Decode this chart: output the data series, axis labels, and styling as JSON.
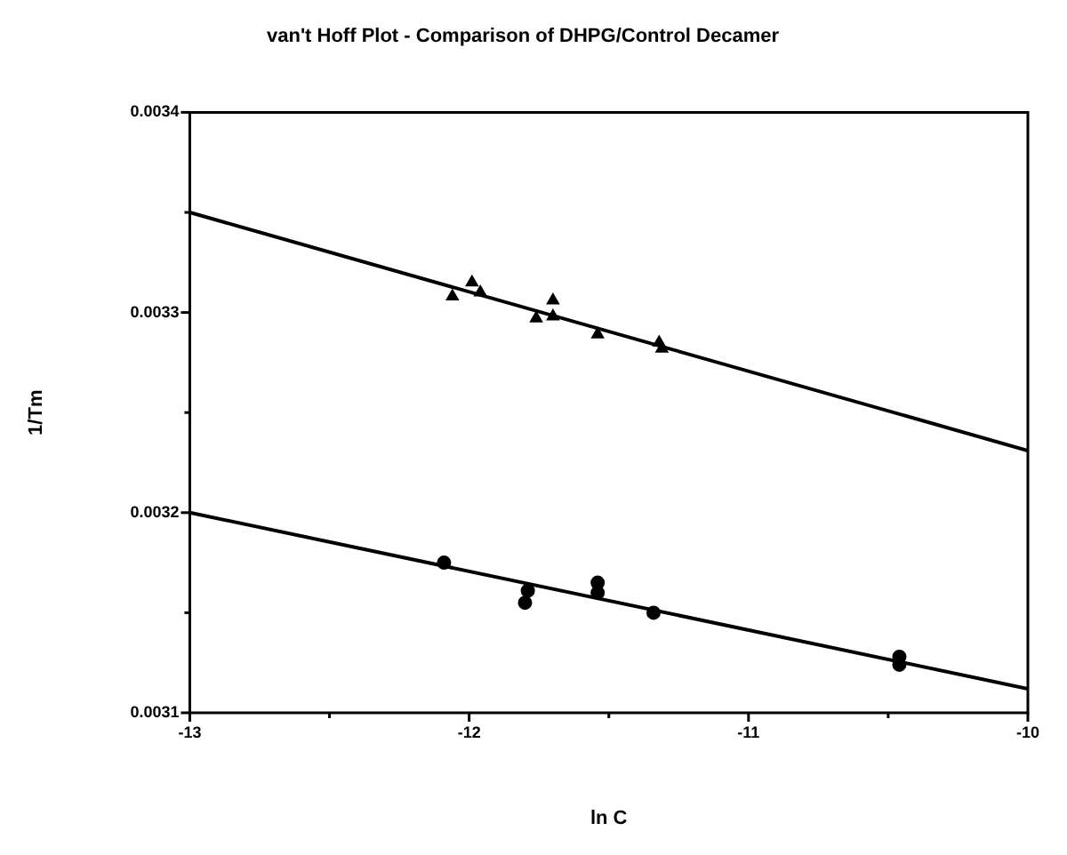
{
  "chart_data": {
    "type": "scatter",
    "title": "van't Hoff Plot - Comparison of DHPG/Control Decamer",
    "xlabel": "ln C",
    "ylabel": "1/Tm",
    "series": [
      {
        "type": "scatter",
        "marker": "triangle",
        "color": "#000000",
        "x": [
          -12.06,
          -11.99,
          -11.96,
          -11.76,
          -11.7,
          -11.7,
          -11.54,
          -11.32,
          -11.31
        ],
        "values": [
          0.003308,
          0.003315,
          0.00331,
          0.003297,
          0.003306,
          0.003298,
          0.003289,
          0.003285,
          0.003282
        ]
      },
      {
        "type": "scatter",
        "marker": "circle",
        "color": "#000000",
        "x": [
          -12.09,
          -11.79,
          -11.8,
          -11.54,
          -11.54,
          -11.34,
          -10.46,
          -10.46
        ],
        "values": [
          0.003175,
          0.003161,
          0.003155,
          0.003165,
          0.00316,
          0.00315,
          0.003128,
          0.003124
        ]
      },
      {
        "type": "line",
        "marker": "none",
        "color": "#000000",
        "x": [
          -13,
          -10
        ],
        "values": [
          0.00335,
          0.003231
        ]
      },
      {
        "type": "line",
        "marker": "none",
        "color": "#000000",
        "x": [
          -13,
          -10
        ],
        "values": [
          0.0032,
          0.003112
        ]
      }
    ],
    "xlim": [
      -13,
      -10
    ],
    "ylim": [
      0.0031,
      0.0034
    ],
    "xticks": [
      -13,
      {
        "value": -12.5,
        "label": null
      },
      -12,
      {
        "value": -11.5,
        "label": null
      },
      -11,
      {
        "value": -10.5,
        "label": null
      },
      -10
    ],
    "yticks": [
      0.0031,
      {
        "value": 0.00315,
        "label": null
      },
      0.0032,
      {
        "value": 0.00325,
        "label": null
      },
      0.0033,
      {
        "value": 0.00335,
        "label": null
      },
      0.0034
    ],
    "grid": false,
    "legend": false
  }
}
